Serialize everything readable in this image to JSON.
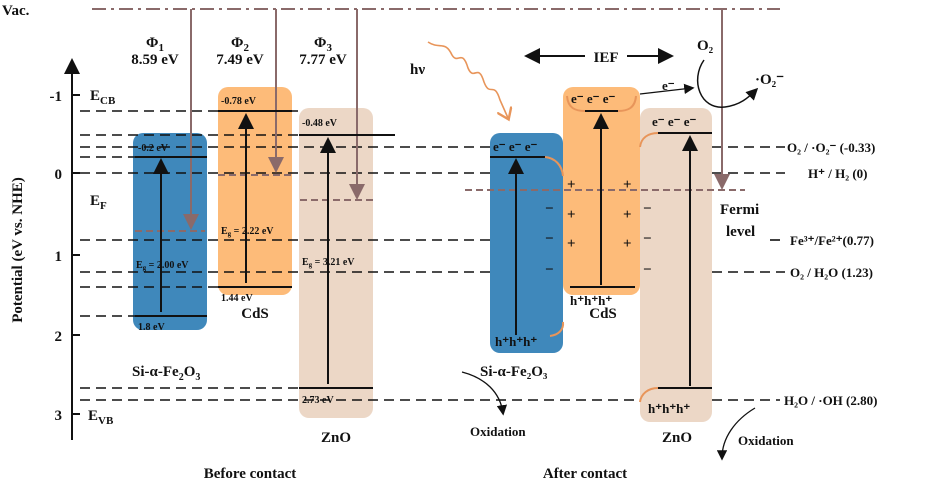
{
  "vac_label": "Vac.",
  "axis": {
    "title": "Potential (eV vs. NHE)",
    "ticks": [
      "-1",
      "0",
      "1",
      "2",
      "3"
    ]
  },
  "side_labels": {
    "ecb": "E",
    "ecb_sub": "CB",
    "ef": "E",
    "ef_sub": "F",
    "evb": "E",
    "evb_sub": "VB"
  },
  "work_functions": [
    {
      "symbol": "Φ",
      "sub": "1",
      "value": "8.59 eV"
    },
    {
      "symbol": "Φ",
      "sub": "2",
      "value": "7.49 eV"
    },
    {
      "symbol": "Φ",
      "sub": "3",
      "value": "7.77 eV"
    }
  ],
  "before": {
    "si": {
      "cb": "-0.2 eV",
      "vb": "1.8 eV",
      "eg": "E",
      "eg_sub": "g",
      "eg_val": " = 2.00 eV",
      "name": "Si-α-Fe",
      "name_sub": "2",
      "name2": "O",
      "name_sub2": "3"
    },
    "cds": {
      "cb": "-0.78 eV",
      "vb": "1.44 eV",
      "eg": "E",
      "eg_sub": "g",
      "eg_val": " = 2.22 eV",
      "name": "CdS"
    },
    "zno": {
      "cb": "-0.48 eV",
      "vb": "2.73 eV",
      "eg": "E",
      "eg_sub": "g",
      "eg_val": " = 3.21 eV",
      "name": "ZnO"
    },
    "caption": "Before contact"
  },
  "after": {
    "hv": "hν",
    "ief": "IEF",
    "o2": "O₂",
    "o2_radical": "·O₂⁻",
    "electron": "e⁻",
    "electrons": "e⁻ e⁻ e⁻",
    "holes": "h⁺h⁺h⁺",
    "plus": "+",
    "minus": "−",
    "fermi": "Fermi",
    "level": "level",
    "si_name": "Si-α-Fe₂O₃",
    "cds_name": "CdS",
    "zno_name": "ZnO",
    "oxidation": "Oxidation",
    "caption": "After contact"
  },
  "redox": [
    {
      "label": "O₂ / ·O₂⁻ (-0.33)",
      "potential": -0.33
    },
    {
      "label": "H⁺ / H₂ (0)",
      "potential": 0
    },
    {
      "label": "Fe³⁺/Fe²⁺(0.77)",
      "potential": 0.77
    },
    {
      "label": "O₂ / H₂O (1.23)",
      "potential": 1.23
    },
    {
      "label": "H₂O / ·OH (2.80)",
      "potential": 2.8
    }
  ],
  "colors": {
    "si": "#3f88bb",
    "cds": "#fdbb79",
    "zno": "#ecd7c6",
    "vac": "#8a6a6a",
    "light": "#e8955a"
  }
}
